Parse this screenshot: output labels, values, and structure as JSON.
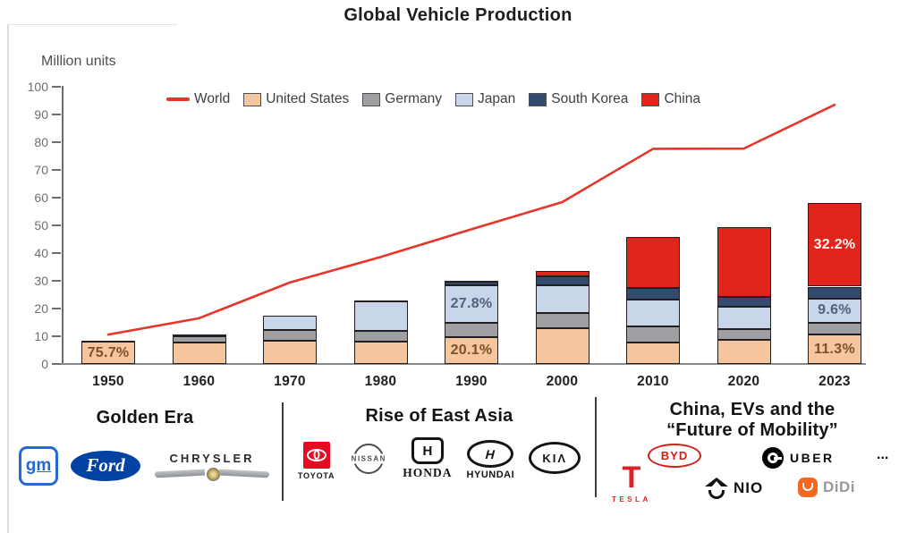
{
  "chart_data": {
    "type": "stacked-bar+line",
    "title": "Global Vehicle Production",
    "ylabel": "Million units",
    "xlabel": "",
    "ylim": [
      0,
      100
    ],
    "ytick_step": 10,
    "grid": false,
    "legend_position": "top-inside",
    "categories": [
      "1950",
      "1960",
      "1970",
      "1980",
      "1990",
      "2000",
      "2010",
      "2020",
      "2023"
    ],
    "series": [
      {
        "name": "United States",
        "color": "#f5c69e",
        "values": [
          8.0,
          7.9,
          8.3,
          8.0,
          9.8,
          12.8,
          7.7,
          8.8,
          10.6
        ]
      },
      {
        "name": "Germany",
        "color": "#9d9fa2",
        "values": [
          0.3,
          2.1,
          3.8,
          3.9,
          5.0,
          5.5,
          5.9,
          3.7,
          4.1
        ]
      },
      {
        "name": "Japan",
        "color": "#c9d5e8",
        "values": [
          0.05,
          0.5,
          5.3,
          11.0,
          13.5,
          10.1,
          9.6,
          8.1,
          9.0
        ]
      },
      {
        "name": "South Korea",
        "color": "#324a6d",
        "values": [
          0,
          0,
          0,
          0.12,
          1.3,
          3.1,
          4.3,
          3.5,
          4.2
        ]
      },
      {
        "name": "China",
        "color": "#e1251b",
        "values": [
          0,
          0,
          0,
          0,
          0.5,
          2.1,
          18.3,
          25.2,
          30.2
        ]
      }
    ],
    "line_series": {
      "name": "World",
      "color": "#e6352b",
      "values": [
        10.6,
        16.5,
        29.4,
        38.6,
        48.6,
        58.4,
        77.6,
        77.7,
        93.5
      ]
    },
    "legend": [
      {
        "label": "World",
        "type": "line",
        "color": "#e6352b"
      },
      {
        "label": "United States",
        "type": "box",
        "color": "#f5c69e"
      },
      {
        "label": "Germany",
        "type": "box",
        "color": "#9d9fa2"
      },
      {
        "label": "Japan",
        "type": "box",
        "color": "#c9d5e8"
      },
      {
        "label": "South Korea",
        "type": "box",
        "color": "#324a6d"
      },
      {
        "label": "China",
        "type": "box",
        "color": "#e1251b"
      }
    ],
    "annotations": [
      {
        "category": "1950",
        "series": "United States",
        "text": "75.7%",
        "color": "#7d4f2c"
      },
      {
        "category": "1990",
        "series": "United States",
        "text": "20.1%",
        "color": "#7d4f2c"
      },
      {
        "category": "1990",
        "series": "Japan",
        "text": "27.8%",
        "color": "#50617c"
      },
      {
        "category": "2023",
        "series": "United States",
        "text": "11.3%",
        "color": "#7d4f2c"
      },
      {
        "category": "2023",
        "series": "Japan",
        "text": "9.6%",
        "color": "#50617c"
      },
      {
        "category": "2023",
        "series": "China",
        "text": "32.2%",
        "color": "#fdf4f2"
      }
    ]
  },
  "eras": [
    {
      "title": "Golden Era",
      "logos": [
        {
          "name": "GM",
          "label": "gm"
        },
        {
          "name": "Ford",
          "label": "Ford"
        },
        {
          "name": "Chrysler",
          "label": "CHRYSLER"
        }
      ]
    },
    {
      "title": "Rise of East Asia",
      "logos": [
        {
          "name": "Toyota",
          "wordmark": "TOYOTA"
        },
        {
          "name": "Nissan",
          "label": "NISSAN"
        },
        {
          "name": "Honda",
          "label": "H",
          "wordmark": "HONDA"
        },
        {
          "name": "Hyundai",
          "label": "H",
          "wordmark": "HYUNDAI"
        },
        {
          "name": "Kia",
          "label": "KIΛ"
        }
      ]
    },
    {
      "title_line1": "China, EVs and the",
      "title_line2": "“Future of Mobility”",
      "logos": [
        {
          "name": "Tesla",
          "label": "T",
          "wordmark": "TESLA"
        },
        {
          "name": "BYD",
          "label": "BYD"
        },
        {
          "name": "Uber",
          "label": "UBER"
        },
        {
          "name": "NIO",
          "label": "NIO"
        },
        {
          "name": "DiDi",
          "label": "DiDi"
        },
        {
          "name": "more",
          "label": "..."
        }
      ]
    }
  ]
}
